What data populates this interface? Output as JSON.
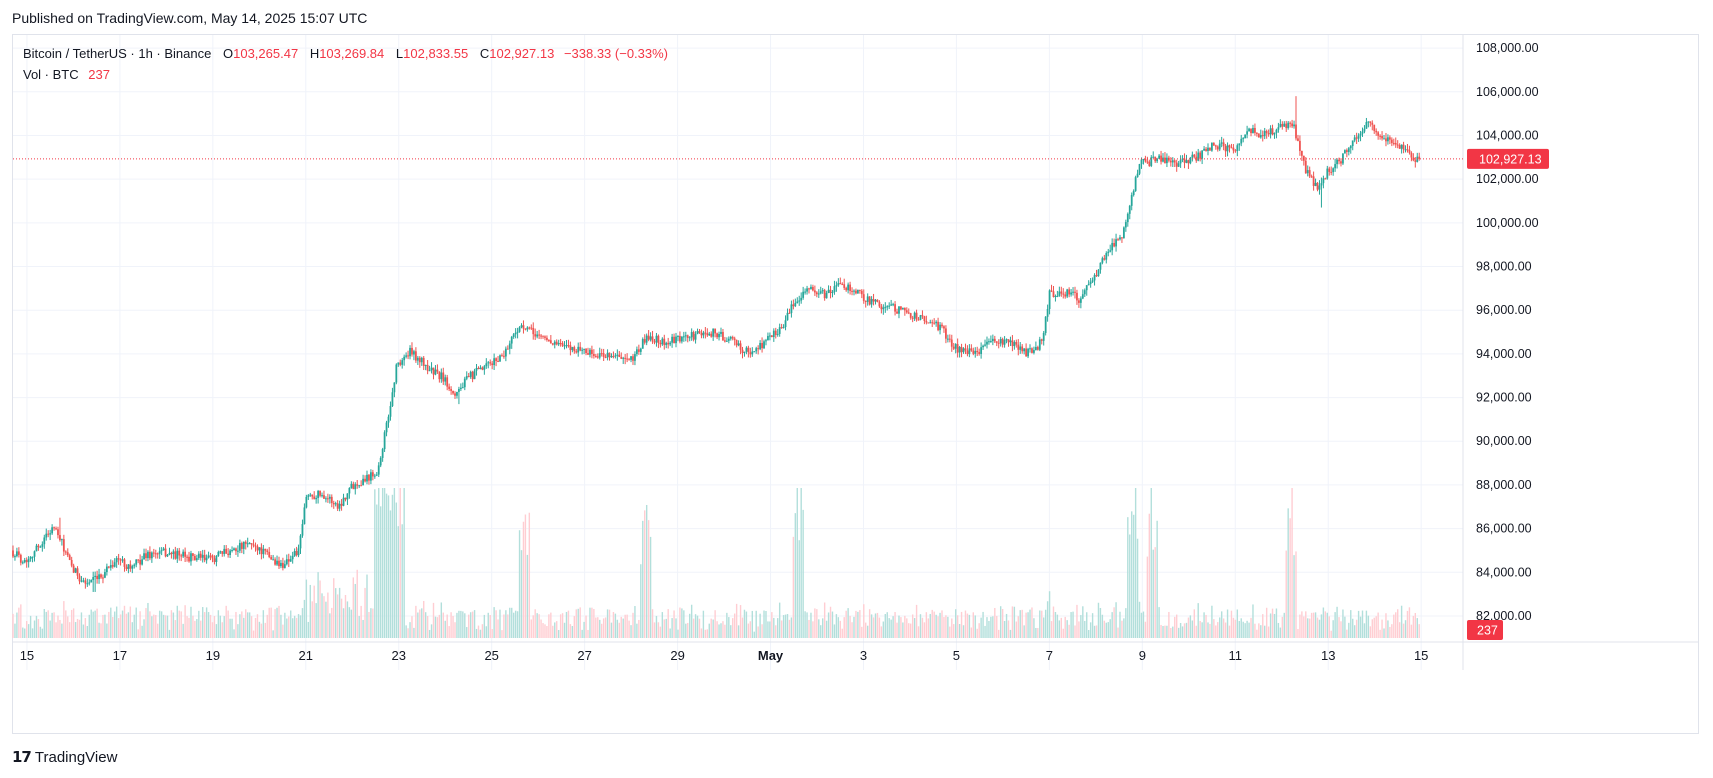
{
  "header": {
    "published": "Published on TradingView.com, May 14, 2025 15:07 UTC"
  },
  "legend": {
    "symbol": "Bitcoin / TetherUS · 1h · Binance",
    "o_label": "O",
    "o_value": "103,265.47",
    "h_label": "H",
    "h_value": "103,269.84",
    "l_label": "L",
    "l_value": "102,833.55",
    "c_label": "C",
    "c_value": "102,927.13",
    "change": "−338.33 (−0.33%)"
  },
  "volume_legend": {
    "label": "Vol · BTC",
    "value": "237"
  },
  "footer": {
    "logo_glyph": "17",
    "brand": "TradingView"
  },
  "colors": {
    "up": "#26a69a",
    "down": "#ef5350",
    "last_price": "#f23645",
    "grid": "#f0f3fa",
    "volume_up": "#b2dfdb",
    "volume_down": "#ffcdd2"
  },
  "chart_data": {
    "type": "candlestick",
    "symbol": "BTCUSDT",
    "interval": "1h",
    "exchange": "Binance",
    "y_axis": {
      "ylim": [
        80900,
        108600
      ],
      "ticks": [
        82000,
        84000,
        86000,
        88000,
        90000,
        92000,
        94000,
        96000,
        98000,
        100000,
        102000,
        104000,
        106000,
        108000
      ],
      "tick_labels": [
        "82,000.00",
        "84,000.00",
        "86,000.00",
        "88,000.00",
        "90,000.00",
        "92,000.00",
        "94,000.00",
        "96,000.00",
        "98,000.00",
        "100,000.00",
        "102,000.00",
        "104,000.00",
        "106,000.00",
        "108,000.00"
      ]
    },
    "x_axis": {
      "day_range": [
        14.7,
        45.9
      ],
      "ticks": [
        {
          "day": 15,
          "label": "15",
          "bold": false
        },
        {
          "day": 17,
          "label": "17",
          "bold": false
        },
        {
          "day": 19,
          "label": "19",
          "bold": false
        },
        {
          "day": 21,
          "label": "21",
          "bold": false
        },
        {
          "day": 23,
          "label": "23",
          "bold": false
        },
        {
          "day": 25,
          "label": "25",
          "bold": false
        },
        {
          "day": 27,
          "label": "27",
          "bold": false
        },
        {
          "day": 29,
          "label": "29",
          "bold": false
        },
        {
          "day": 31,
          "label": "May",
          "bold": true
        },
        {
          "day": 33,
          "label": "3",
          "bold": false
        },
        {
          "day": 35,
          "label": "5",
          "bold": false
        },
        {
          "day": 37,
          "label": "7",
          "bold": false
        },
        {
          "day": 39,
          "label": "9",
          "bold": false
        },
        {
          "day": 41,
          "label": "11",
          "bold": false
        },
        {
          "day": 43,
          "label": "13",
          "bold": false
        },
        {
          "day": 45,
          "label": "15",
          "bold": false
        }
      ]
    },
    "price_path": [
      {
        "day": 14.7,
        "price": 85000
      },
      {
        "day": 15.0,
        "price": 84500
      },
      {
        "day": 15.3,
        "price": 85200
      },
      {
        "day": 15.6,
        "price": 86100
      },
      {
        "day": 15.8,
        "price": 85300
      },
      {
        "day": 16.0,
        "price": 84200
      },
      {
        "day": 16.3,
        "price": 83500
      },
      {
        "day": 16.6,
        "price": 83700
      },
      {
        "day": 16.8,
        "price": 84300
      },
      {
        "day": 17.0,
        "price": 84600
      },
      {
        "day": 17.3,
        "price": 84200
      },
      {
        "day": 17.6,
        "price": 84800
      },
      {
        "day": 18.0,
        "price": 84900
      },
      {
        "day": 18.5,
        "price": 84700
      },
      {
        "day": 19.0,
        "price": 84600
      },
      {
        "day": 19.5,
        "price": 85100
      },
      {
        "day": 19.9,
        "price": 85300
      },
      {
        "day": 20.2,
        "price": 84800
      },
      {
        "day": 20.5,
        "price": 84300
      },
      {
        "day": 20.9,
        "price": 85000
      },
      {
        "day": 21.05,
        "price": 87500
      },
      {
        "day": 21.4,
        "price": 87600
      },
      {
        "day": 21.75,
        "price": 87000
      },
      {
        "day": 22.0,
        "price": 87900
      },
      {
        "day": 22.4,
        "price": 88400
      },
      {
        "day": 22.6,
        "price": 88700
      },
      {
        "day": 22.85,
        "price": 91500
      },
      {
        "day": 23.0,
        "price": 93500
      },
      {
        "day": 23.3,
        "price": 94100
      },
      {
        "day": 23.7,
        "price": 93300
      },
      {
        "day": 24.0,
        "price": 92900
      },
      {
        "day": 24.25,
        "price": 92200
      },
      {
        "day": 24.6,
        "price": 93000
      },
      {
        "day": 25.0,
        "price": 93500
      },
      {
        "day": 25.3,
        "price": 94000
      },
      {
        "day": 25.6,
        "price": 95200
      },
      {
        "day": 25.8,
        "price": 95100
      },
      {
        "day": 26.2,
        "price": 94700
      },
      {
        "day": 26.6,
        "price": 94300
      },
      {
        "day": 27.0,
        "price": 94200
      },
      {
        "day": 27.3,
        "price": 93900
      },
      {
        "day": 27.6,
        "price": 94000
      },
      {
        "day": 28.0,
        "price": 93600
      },
      {
        "day": 28.4,
        "price": 94800
      },
      {
        "day": 28.8,
        "price": 94500
      },
      {
        "day": 29.3,
        "price": 94800
      },
      {
        "day": 29.8,
        "price": 95000
      },
      {
        "day": 30.2,
        "price": 94600
      },
      {
        "day": 30.6,
        "price": 94000
      },
      {
        "day": 31.0,
        "price": 94700
      },
      {
        "day": 31.3,
        "price": 95300
      },
      {
        "day": 31.6,
        "price": 96500
      },
      {
        "day": 31.8,
        "price": 97000
      },
      {
        "day": 32.2,
        "price": 96700
      },
      {
        "day": 32.6,
        "price": 97200
      },
      {
        "day": 32.9,
        "price": 96800
      },
      {
        "day": 33.3,
        "price": 96300
      },
      {
        "day": 33.7,
        "price": 96100
      },
      {
        "day": 34.2,
        "price": 95700
      },
      {
        "day": 34.7,
        "price": 95200
      },
      {
        "day": 35.0,
        "price": 94300
      },
      {
        "day": 35.4,
        "price": 94000
      },
      {
        "day": 35.8,
        "price": 94600
      },
      {
        "day": 36.3,
        "price": 94400
      },
      {
        "day": 36.6,
        "price": 94000
      },
      {
        "day": 36.9,
        "price": 94600
      },
      {
        "day": 37.05,
        "price": 96800
      },
      {
        "day": 37.4,
        "price": 96800
      },
      {
        "day": 37.7,
        "price": 96500
      },
      {
        "day": 38.0,
        "price": 97500
      },
      {
        "day": 38.3,
        "price": 98800
      },
      {
        "day": 38.6,
        "price": 99400
      },
      {
        "day": 38.8,
        "price": 101200
      },
      {
        "day": 39.0,
        "price": 102700
      },
      {
        "day": 39.4,
        "price": 102900
      },
      {
        "day": 39.8,
        "price": 102700
      },
      {
        "day": 40.2,
        "price": 103000
      },
      {
        "day": 40.6,
        "price": 103600
      },
      {
        "day": 41.0,
        "price": 103300
      },
      {
        "day": 41.3,
        "price": 104300
      },
      {
        "day": 41.7,
        "price": 104000
      },
      {
        "day": 42.0,
        "price": 104400
      },
      {
        "day": 42.3,
        "price": 104400
      },
      {
        "day": 42.55,
        "price": 102400
      },
      {
        "day": 42.8,
        "price": 101600
      },
      {
        "day": 43.0,
        "price": 102300
      },
      {
        "day": 43.3,
        "price": 102800
      },
      {
        "day": 43.6,
        "price": 103900
      },
      {
        "day": 43.9,
        "price": 104500
      },
      {
        "day": 44.2,
        "price": 103900
      },
      {
        "day": 44.5,
        "price": 103600
      },
      {
        "day": 44.7,
        "price": 103500
      },
      {
        "day": 44.9,
        "price": 102930
      }
    ],
    "candle_interval_hours": 1,
    "candle_count": 720,
    "spike_extremes": [
      {
        "day": 42.3,
        "price": 105800,
        "type": "high"
      },
      {
        "day": 42.85,
        "price": 100700,
        "type": "low"
      },
      {
        "day": 24.3,
        "price": 91700,
        "type": "low"
      },
      {
        "day": 16.45,
        "price": 83100,
        "type": "low"
      },
      {
        "day": 15.7,
        "price": 86500,
        "type": "high"
      }
    ],
    "last_price": 102927.13,
    "last_price_label": "102,927.13",
    "last_volume_label": "237",
    "volume": {
      "last": 237,
      "peak_days": [
        22.8,
        25.7,
        38.8,
        42.2,
        23.0,
        22.6,
        39.2,
        31.6,
        28.3
      ]
    }
  }
}
